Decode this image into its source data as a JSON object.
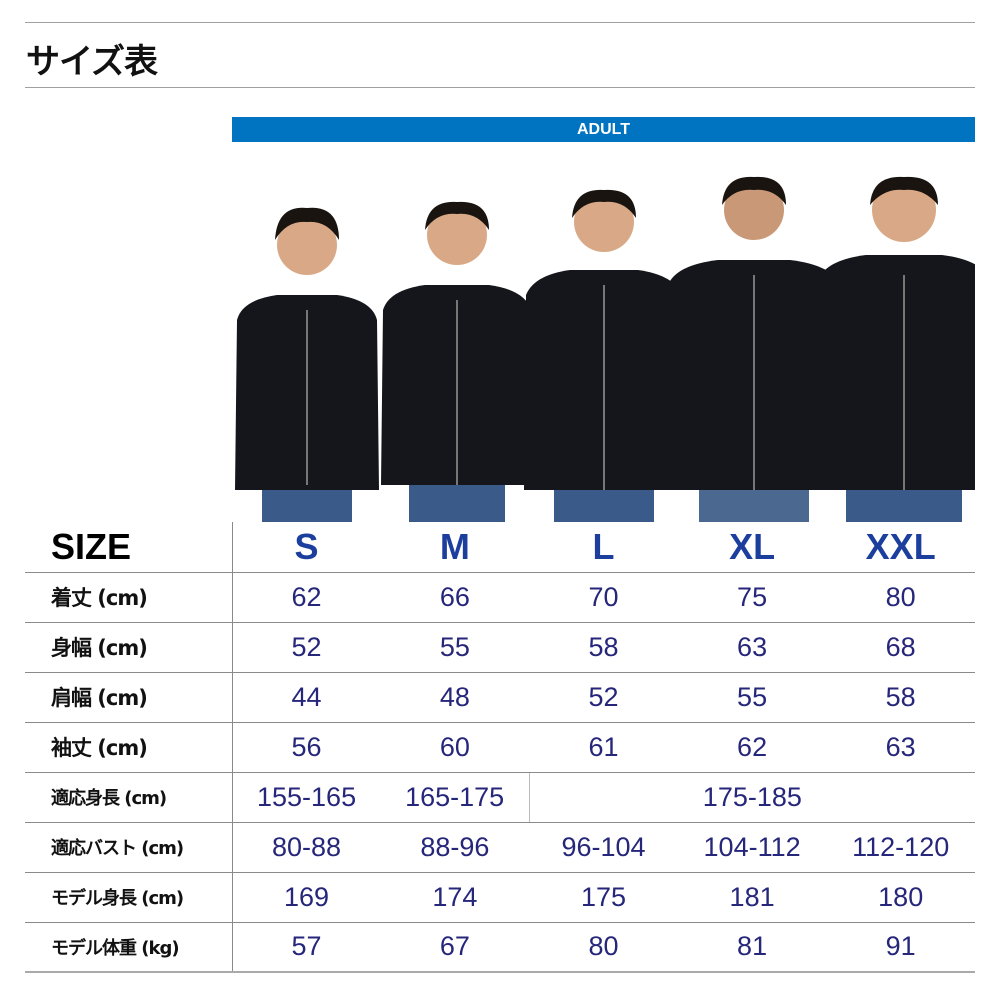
{
  "title": "サイズ表",
  "band": "ADULT",
  "colors": {
    "band": "#0074c1",
    "size_label": "#1c3f9e",
    "value": "#26267a"
  },
  "header": {
    "label": "SIZE",
    "sizes": [
      "S",
      "M",
      "L",
      "XL",
      "XXL"
    ]
  },
  "rows": [
    {
      "label": "着丈 (cm)",
      "values": [
        "62",
        "66",
        "70",
        "75",
        "80"
      ]
    },
    {
      "label": "身幅 (cm)",
      "values": [
        "52",
        "55",
        "58",
        "63",
        "68"
      ]
    },
    {
      "label": "肩幅 (cm)",
      "values": [
        "44",
        "48",
        "52",
        "55",
        "58"
      ]
    },
    {
      "label": "袖丈 (cm)",
      "values": [
        "56",
        "60",
        "61",
        "62",
        "63"
      ]
    },
    {
      "label": "適応身長 (cm)",
      "values": [
        "155-165",
        "165-175",
        "175-185"
      ]
    },
    {
      "label": "適応バスト (cm)",
      "values": [
        "80-88",
        "88-96",
        "96-104",
        "104-112",
        "112-120"
      ]
    },
    {
      "label": "モデル身長 (cm)",
      "values": [
        "169",
        "174",
        "175",
        "181",
        "180"
      ]
    },
    {
      "label": "モデル体重 (kg)",
      "values": [
        "57",
        "67",
        "80",
        "81",
        "91"
      ]
    }
  ]
}
